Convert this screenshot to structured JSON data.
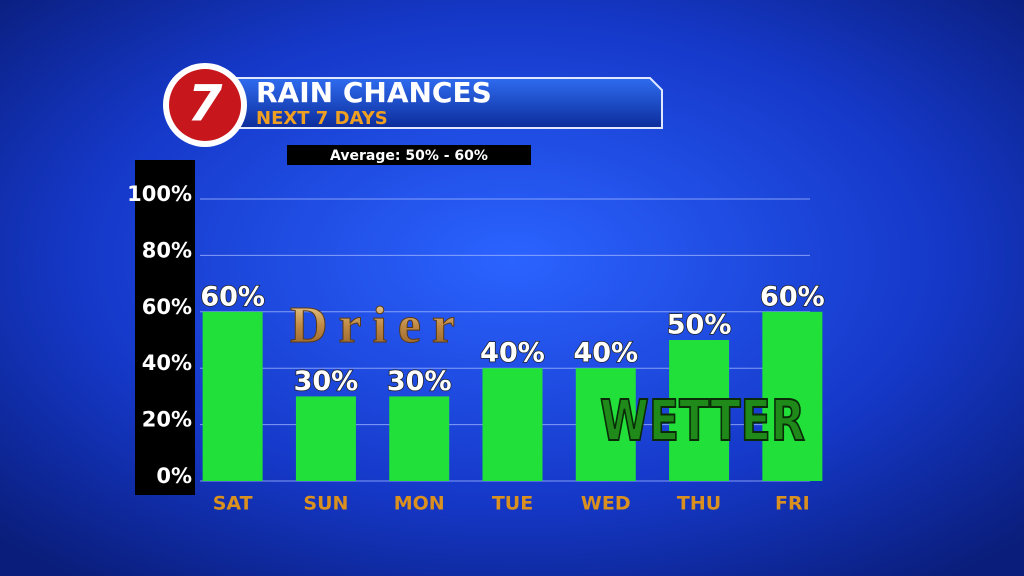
{
  "chart_data": {
    "type": "bar",
    "logo": "7",
    "title": "RAIN CHANCES",
    "subtitle": "NEXT 7 DAYS",
    "annotations": [
      "Average: 50% - 60%",
      "Drier",
      "WETTER"
    ],
    "categories": [
      "SAT",
      "SUN",
      "MON",
      "TUE",
      "WED",
      "THU",
      "FRI"
    ],
    "values": [
      60,
      30,
      30,
      40,
      40,
      50,
      60
    ],
    "value_labels": [
      "60%",
      "30%",
      "30%",
      "40%",
      "40%",
      "50%",
      "60%"
    ],
    "color": "#22e03a",
    "ylim": [
      0,
      100
    ],
    "yticks": [
      {
        "value": 0,
        "label": "0%"
      },
      {
        "value": 20,
        "label": "20%"
      },
      {
        "value": 40,
        "label": "40%"
      },
      {
        "value": 60,
        "label": "60%"
      },
      {
        "value": 80,
        "label": "80%"
      },
      {
        "value": 100,
        "label": "100%"
      }
    ],
    "grid": true
  }
}
